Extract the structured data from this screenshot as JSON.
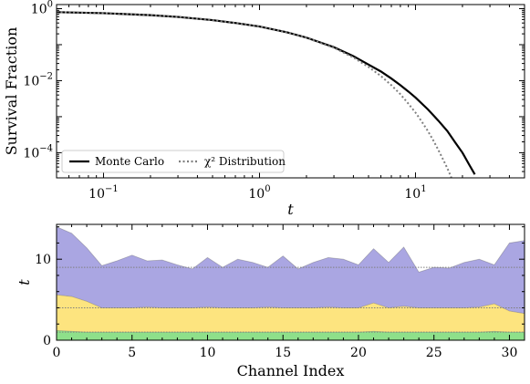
{
  "chart_data": [
    {
      "type": "line",
      "xscale": "log",
      "yscale": "log",
      "xlim": [
        0.05,
        50
      ],
      "ylim": [
        2e-05,
        1.3
      ],
      "xlabel": "t",
      "ylabel": "Survival Fraction",
      "x_tick_values": [
        0.1,
        1,
        10
      ],
      "x_tick_labels": [
        "10",
        "10",
        "10"
      ],
      "x_tick_exponents": [
        "−1",
        "0",
        "1"
      ],
      "y_tick_values": [
        0.0001,
        0.01,
        1
      ],
      "y_tick_labels": [
        "10",
        "10",
        "10"
      ],
      "y_tick_exponents": [
        "−4",
        "−2",
        "0"
      ],
      "legend_position": "lower-left",
      "grid": false,
      "series": [
        {
          "name": "Monte Carlo",
          "style": "solid",
          "color": "#000000",
          "x": [
            0.05,
            0.1,
            0.2,
            0.3,
            0.5,
            0.7,
            1,
            1.5,
            2,
            3,
            4,
            5,
            6,
            7,
            8,
            9,
            10,
            12,
            14,
            16,
            18,
            20,
            22,
            24
          ],
          "y": [
            0.8,
            0.75,
            0.66,
            0.59,
            0.48,
            0.4,
            0.32,
            0.22,
            0.157,
            0.085,
            0.048,
            0.028,
            0.018,
            0.0115,
            0.0075,
            0.005,
            0.0034,
            0.0016,
            0.00078,
            0.0004,
            0.00019,
            0.0001,
            4.8e-05,
            2.5e-05
          ]
        },
        {
          "name": "χ² Distribution",
          "style": "dotted",
          "color": "#7f7f7f",
          "x": [
            0.05,
            0.1,
            0.2,
            0.3,
            0.5,
            0.7,
            1,
            1.5,
            2,
            3,
            4,
            5,
            6,
            7,
            8,
            9,
            10,
            11,
            12,
            13,
            14,
            15,
            16,
            17,
            18
          ],
          "y": [
            0.8,
            0.75,
            0.66,
            0.59,
            0.48,
            0.4,
            0.32,
            0.22,
            0.155,
            0.082,
            0.044,
            0.024,
            0.0135,
            0.0075,
            0.0042,
            0.0023,
            0.0013,
            0.00072,
            0.0004,
            0.00022,
            0.00012,
            6.6e-05,
            3.7e-05,
            2e-05,
            1.1e-05
          ]
        }
      ]
    },
    {
      "type": "area",
      "xlim": [
        0,
        31
      ],
      "ylim": [
        0,
        14.3
      ],
      "xlabel": "Channel Index",
      "ylabel": "t",
      "x_ticks": [
        0,
        5,
        10,
        15,
        20,
        25,
        30
      ],
      "y_ticks": [
        0,
        10
      ],
      "grid": false,
      "x": [
        0,
        1,
        2,
        3,
        4,
        5,
        6,
        7,
        8,
        9,
        10,
        11,
        12,
        13,
        14,
        15,
        16,
        17,
        18,
        19,
        20,
        21,
        22,
        23,
        24,
        25,
        26,
        27,
        28,
        29,
        30,
        31
      ],
      "series": [
        {
          "color": "#aaa6e2",
          "lower": [
            5.6,
            5.4,
            4.8,
            4.0,
            4.0,
            4.0,
            4.1,
            4.0,
            4.0,
            4.0,
            4.1,
            4.0,
            4.0,
            4.0,
            4.1,
            4.0,
            4.0,
            4.0,
            4.1,
            4.0,
            4.0,
            4.6,
            4.0,
            4.2,
            4.0,
            4.0,
            4.0,
            4.0,
            4.1,
            4.5,
            3.6,
            3.3
          ],
          "upper": [
            14.0,
            13.2,
            11.4,
            9.2,
            9.8,
            10.5,
            9.8,
            9.9,
            9.3,
            8.8,
            10.2,
            9.0,
            10.0,
            9.6,
            9.0,
            10.4,
            8.8,
            9.6,
            10.2,
            10.0,
            9.3,
            11.3,
            9.6,
            11.5,
            8.4,
            9.0,
            8.9,
            9.6,
            10.0,
            9.3,
            12.0,
            12.3
          ]
        },
        {
          "color": "#fde47f",
          "lower": [
            1.2,
            1.1,
            1.0,
            1.0,
            1.0,
            1.0,
            1.0,
            1.0,
            1.0,
            1.0,
            1.0,
            1.0,
            1.0,
            1.0,
            1.0,
            1.0,
            1.0,
            1.0,
            1.0,
            1.0,
            1.0,
            1.1,
            1.0,
            1.0,
            1.0,
            1.0,
            1.0,
            1.0,
            1.0,
            1.1,
            1.0,
            1.0
          ],
          "upper": [
            5.6,
            5.4,
            4.8,
            4.0,
            4.0,
            4.0,
            4.1,
            4.0,
            4.0,
            4.0,
            4.1,
            4.0,
            4.0,
            4.0,
            4.1,
            4.0,
            4.0,
            4.0,
            4.1,
            4.0,
            4.0,
            4.6,
            4.0,
            4.2,
            4.0,
            4.0,
            4.0,
            4.0,
            4.1,
            4.5,
            3.6,
            3.3
          ]
        },
        {
          "color": "#8ee08a",
          "lower": [
            0,
            0,
            0,
            0,
            0,
            0,
            0,
            0,
            0,
            0,
            0,
            0,
            0,
            0,
            0,
            0,
            0,
            0,
            0,
            0,
            0,
            0,
            0,
            0,
            0,
            0,
            0,
            0,
            0,
            0,
            0,
            0
          ],
          "upper": [
            1.2,
            1.1,
            1.0,
            1.0,
            1.0,
            1.0,
            1.0,
            1.0,
            1.0,
            1.0,
            1.0,
            1.0,
            1.0,
            1.0,
            1.0,
            1.0,
            1.0,
            1.0,
            1.0,
            1.0,
            1.0,
            1.1,
            1.0,
            1.0,
            1.0,
            1.0,
            1.0,
            1.0,
            1.0,
            1.1,
            1.0,
            1.0
          ]
        }
      ],
      "reference_lines": [
        {
          "y": 9.0,
          "style": "dotted",
          "color": "#7f7f7f"
        },
        {
          "y": 4.0,
          "style": "dotted",
          "color": "#7f7f7f"
        },
        {
          "y": 1.0,
          "style": "dotted",
          "color": "#7f7f7f"
        }
      ]
    }
  ]
}
